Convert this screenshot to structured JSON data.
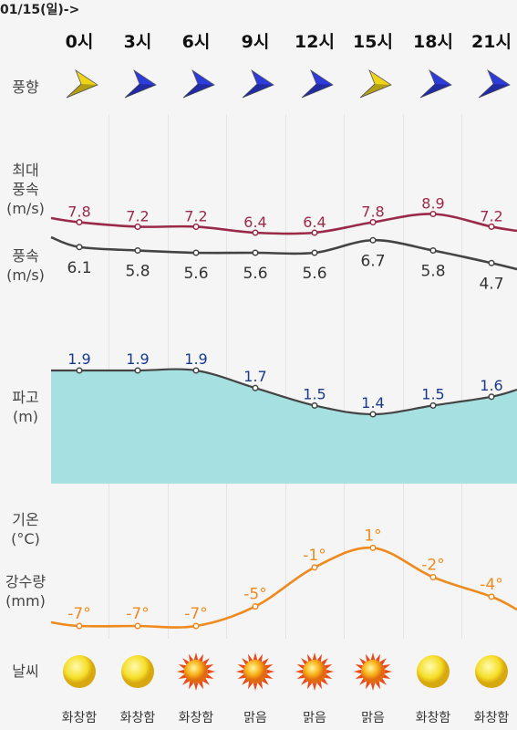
{
  "date_label": "01/15(일)->",
  "hours": [
    "0시",
    "3시",
    "6시",
    "9시",
    "12시",
    "15시",
    "18시",
    "21시"
  ],
  "labels": {
    "wind_dir": "풍향",
    "max_wind": [
      "최대",
      "풍속",
      "(m/s)"
    ],
    "wind": [
      "풍속",
      "(m/s)"
    ],
    "wave": [
      "파고",
      "(m)"
    ],
    "temp": [
      "기온",
      "(°C)"
    ],
    "precip": [
      "강수량",
      "(mm)"
    ],
    "weather": "날씨"
  },
  "wind_dir_colors": [
    "yellow",
    "blue",
    "blue",
    "blue",
    "blue",
    "yellow",
    "blue",
    "blue"
  ],
  "max_wind_values": [
    "7.8",
    "7.2",
    "7.2",
    "6.4",
    "6.4",
    "7.8",
    "8.9",
    "7.2"
  ],
  "wind_values": [
    "6.1",
    "5.8",
    "5.6",
    "5.6",
    "5.6",
    "6.7",
    "5.8",
    "4.7"
  ],
  "wave_values": [
    "1.9",
    "1.9",
    "1.9",
    "1.7",
    "1.5",
    "1.4",
    "1.5",
    "1.6"
  ],
  "temp_values": [
    "-7°",
    "-7°",
    "-7°",
    "-5°",
    "-1°",
    "1°",
    "-2°",
    "-4°"
  ],
  "weather_icons": [
    "pale-sun-icon",
    "pale-sun-icon",
    "bright-sun-icon",
    "bright-sun-icon",
    "bright-sun-icon",
    "bright-sun-icon",
    "pale-sun-icon",
    "pale-sun-icon"
  ],
  "conditions": [
    "화창함",
    "화창함",
    "화창함",
    "맑음",
    "맑음",
    "맑음",
    "화창함",
    "화창함"
  ],
  "colors": {
    "max_wind": "#9a2a4a",
    "wind": "#444444",
    "wave_fill": "#a6e0e0",
    "wave_line": "#444444",
    "wave_text": "#1a3a8a",
    "temp": "#ee8a1e",
    "blue_arrow": "#2d3bd8",
    "yellow_arrow": "#f0d418"
  }
}
